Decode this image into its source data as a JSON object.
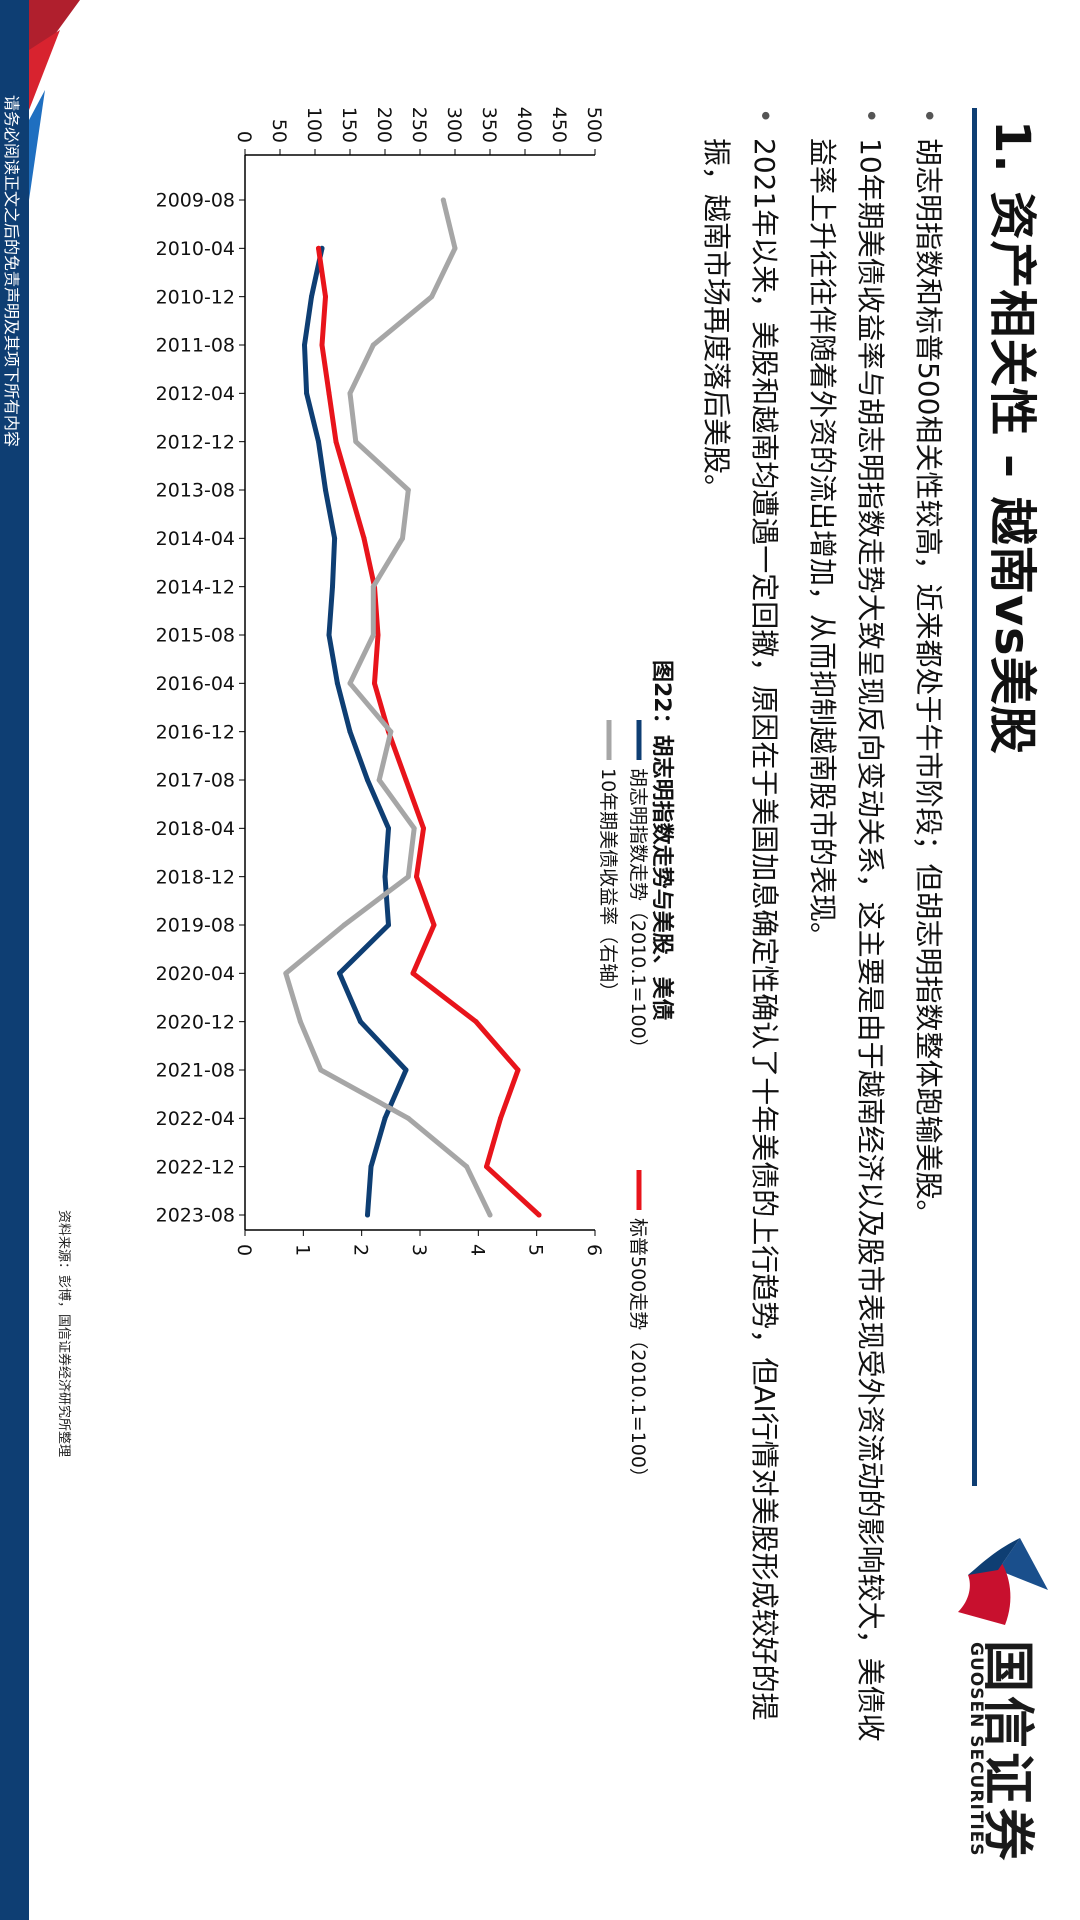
{
  "slide": {
    "title": "1.  资产相关性 – 越南vs美股",
    "logo": {
      "name_cn": "国信证券",
      "name_en": "GUOSEN SECURITIES"
    },
    "bullets": [
      "胡志明指数和标普500相关性较高，近来都处于牛市阶段；但胡志明指数整体跑输美股。",
      "10年期美债收益率与胡志明指数走势大致呈现反向变动关系，这主要是由于越南经济以及股市表现受外资流动的影响较大，美债收益率上升往往伴随着外资的流出增加，从而抑制越南股市的表现。",
      "2021年以来，美股和越南均遭遇一定回撤，原因在于美国加息确定性确认了十年美债的上行趋势，但AI行情对美股形成较好的提振，越南市场再度落后美股。"
    ],
    "chart_title": "图22：胡志明指数走势与美股、美债",
    "source": "资料来源：彭博，国信证券经济研究所整理",
    "disclaimer": "请务必阅读正文之后的免责声明及其项下所有内容",
    "colors": {
      "navy": "#0e3e73",
      "red": "#e8141b",
      "gray": "#a6a6a6",
      "brand_red": "#c8102e"
    }
  },
  "chart_data": {
    "type": "line",
    "title": "图22：胡志明指数走势与美股、美债",
    "x": [
      "2009-08",
      "2010-04",
      "2010-12",
      "2011-08",
      "2012-04",
      "2012-12",
      "2013-08",
      "2014-04",
      "2014-12",
      "2015-08",
      "2016-04",
      "2016-12",
      "2017-08",
      "2018-04",
      "2018-12",
      "2019-08",
      "2020-04",
      "2020-12",
      "2021-08",
      "2022-04",
      "2022-12",
      "2023-08"
    ],
    "x_ticks": [
      "2009-08",
      "2010-04",
      "2010-12",
      "2011-08",
      "2012-04",
      "2012-12",
      "2013-08",
      "2014-04",
      "2014-12",
      "2015-08",
      "2016-04",
      "2016-12",
      "2017-08",
      "2018-04",
      "2018-12",
      "2019-08",
      "2020-04",
      "2020-12",
      "2021-08",
      "2022-04",
      "2022-12",
      "2023-08"
    ],
    "y_left": {
      "ylim": [
        0,
        500
      ],
      "ticks": [
        0,
        50,
        100,
        150,
        200,
        250,
        300,
        350,
        400,
        450,
        500
      ]
    },
    "y_right": {
      "ylim": [
        0,
        6
      ],
      "ticks": [
        0,
        1,
        2,
        3,
        4,
        5,
        6
      ]
    },
    "legend_position": "top",
    "series": [
      {
        "name": "胡志明指数走势（2010.1=100）",
        "axis": "left",
        "color": "#0e3e73",
        "values": [
          null,
          110,
          95,
          85,
          88,
          105,
          115,
          128,
          125,
          120,
          132,
          150,
          175,
          205,
          200,
          205,
          135,
          165,
          230,
          200,
          180,
          175
        ]
      },
      {
        "name": "标普500走势（2010.1=100）",
        "axis": "left",
        "color": "#e8141b",
        "values": [
          null,
          105,
          115,
          110,
          120,
          130,
          150,
          170,
          185,
          190,
          185,
          205,
          230,
          255,
          245,
          270,
          240,
          330,
          390,
          365,
          345,
          420
        ]
      },
      {
        "name": "10年期美债收益率（右轴）",
        "axis": "right",
        "color": "#a6a6a6",
        "values": [
          3.4,
          3.6,
          3.2,
          2.2,
          1.8,
          1.9,
          2.8,
          2.7,
          2.2,
          2.2,
          1.8,
          2.5,
          2.3,
          2.9,
          2.8,
          1.7,
          0.7,
          0.95,
          1.3,
          2.8,
          3.8,
          4.2
        ]
      }
    ]
  }
}
